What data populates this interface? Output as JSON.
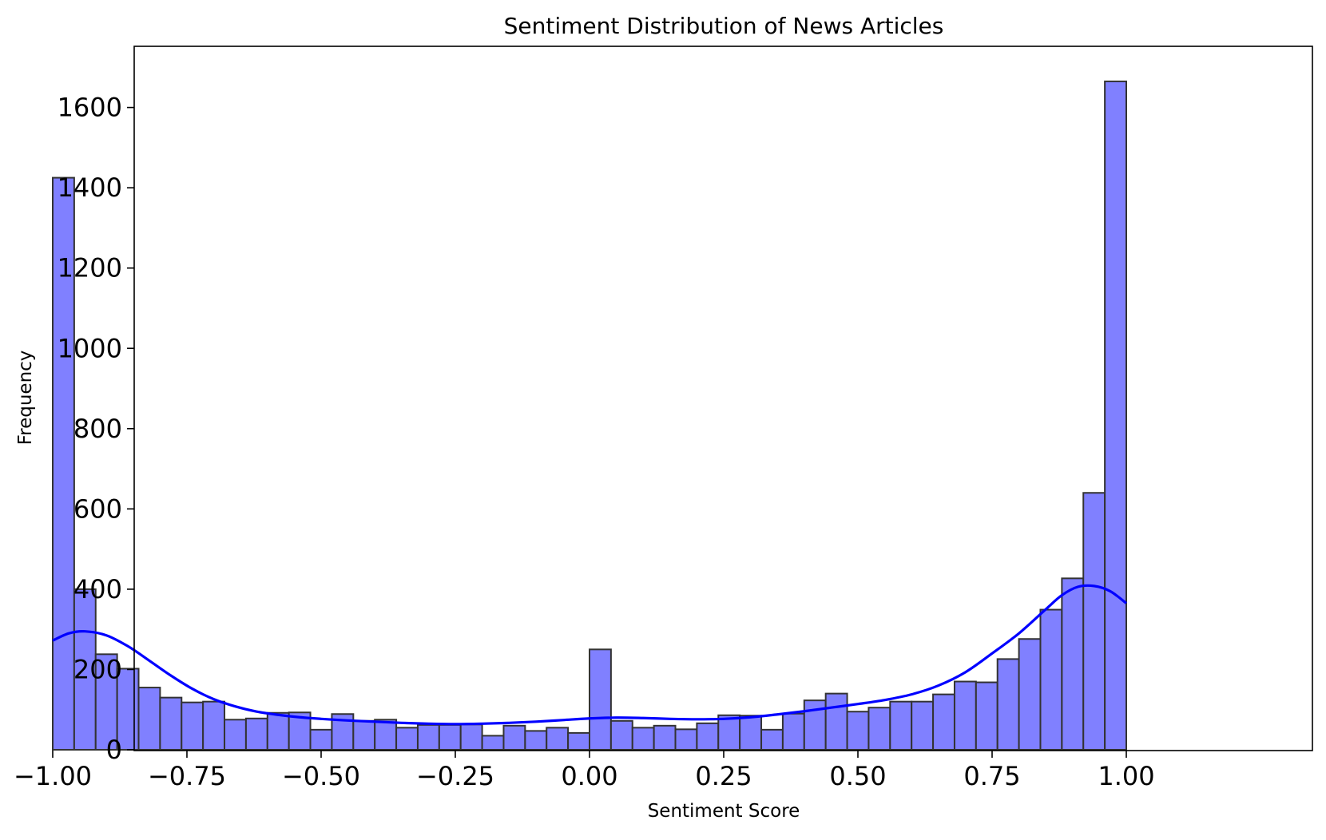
{
  "chart_data": {
    "type": "bar",
    "title": "Sentiment Distribution of News Articles",
    "xlabel": "Sentiment Score",
    "ylabel": "Frequency",
    "xlim": [
      -1.1,
      1.1
    ],
    "ylim": [
      0,
      1750
    ],
    "grid": false,
    "x_ticks": [
      -1.0,
      -0.75,
      -0.5,
      -0.25,
      0.0,
      0.25,
      0.5,
      0.75,
      1.0
    ],
    "x_tick_labels": [
      "−1.00",
      "−0.75",
      "−0.50",
      "−0.25",
      "0.00",
      "0.25",
      "0.50",
      "0.75",
      "1.00"
    ],
    "y_ticks": [
      0,
      200,
      400,
      600,
      800,
      1000,
      1200,
      1400,
      1600
    ],
    "y_tick_labels": [
      "0",
      "200",
      "400",
      "600",
      "800",
      "1000",
      "1200",
      "1400",
      "1600"
    ],
    "bins": {
      "start": -1.0,
      "end": 1.0,
      "counts": [
        1425,
        400,
        238,
        202,
        155,
        130,
        118,
        120,
        75,
        78,
        92,
        93,
        50,
        89,
        72,
        75,
        55,
        62,
        62,
        63,
        35,
        60,
        47,
        55,
        42,
        250,
        72,
        55,
        60,
        51,
        66,
        86,
        85,
        50,
        90,
        123,
        140,
        95,
        105,
        120,
        120,
        138,
        170,
        168,
        226,
        276,
        349,
        427,
        640,
        1665
      ]
    },
    "kde": {
      "x": [
        -1.0,
        -0.97,
        -0.94,
        -0.9,
        -0.86,
        -0.82,
        -0.78,
        -0.74,
        -0.7,
        -0.66,
        -0.62,
        -0.58,
        -0.54,
        -0.5,
        -0.45,
        -0.4,
        -0.35,
        -0.3,
        -0.25,
        -0.2,
        -0.15,
        -0.1,
        -0.05,
        0.0,
        0.05,
        0.1,
        0.15,
        0.2,
        0.25,
        0.3,
        0.35,
        0.4,
        0.45,
        0.5,
        0.55,
        0.6,
        0.65,
        0.7,
        0.75,
        0.8,
        0.85,
        0.88,
        0.91,
        0.94,
        0.97,
        1.0
      ],
      "y": [
        272,
        290,
        295,
        285,
        258,
        222,
        185,
        152,
        126,
        108,
        95,
        87,
        81,
        77,
        73,
        70,
        67,
        65,
        64,
        65,
        67,
        70,
        74,
        78,
        80,
        79,
        77,
        76,
        77,
        81,
        88,
        96,
        105,
        114,
        124,
        138,
        160,
        193,
        240,
        290,
        350,
        385,
        406,
        408,
        395,
        365
      ]
    },
    "colors": {
      "bar_fill": "#8080ff",
      "bar_edge": "#333333",
      "kde_line": "#0000ff",
      "axes": "#000000"
    }
  }
}
